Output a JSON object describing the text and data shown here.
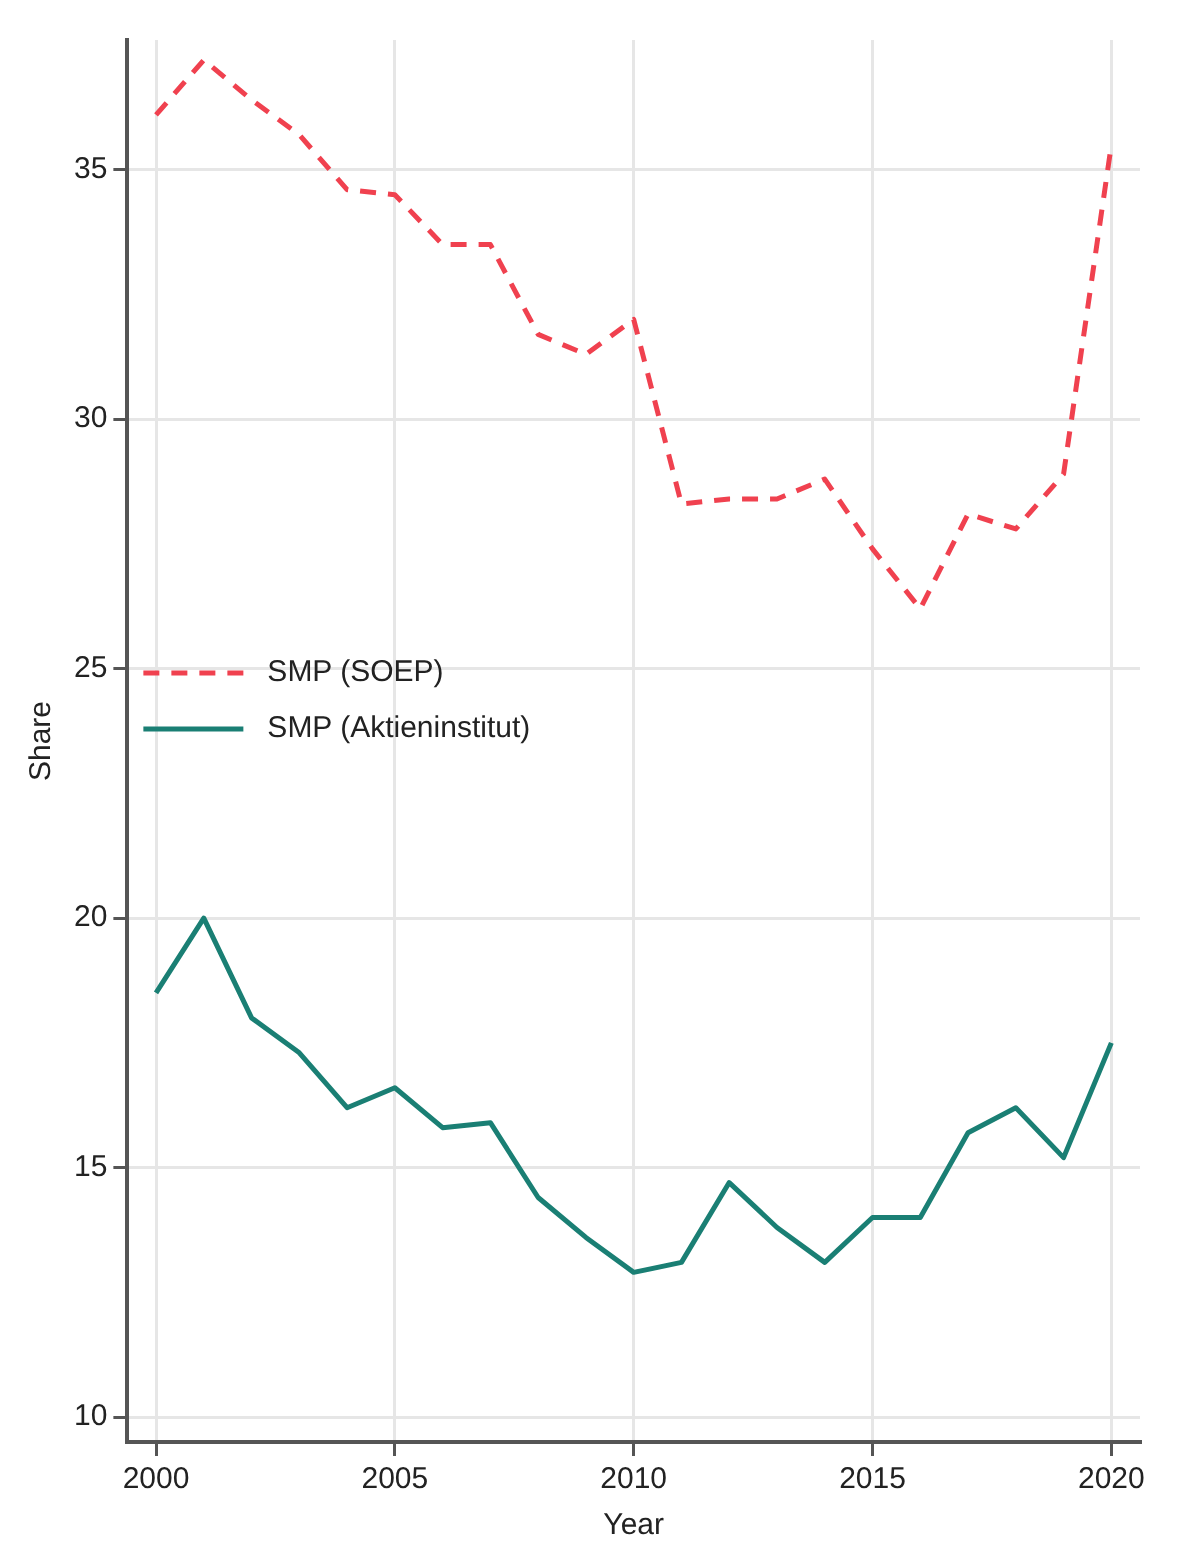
{
  "chart_data": {
    "type": "line",
    "xlabel": "Year",
    "ylabel": "Share",
    "x": [
      2000,
      2001,
      2002,
      2003,
      2004,
      2005,
      2006,
      2007,
      2008,
      2009,
      2010,
      2011,
      2012,
      2013,
      2014,
      2015,
      2016,
      2017,
      2018,
      2019,
      2020
    ],
    "xlim": [
      1999.4,
      2020.6
    ],
    "xticks": [
      2000,
      2005,
      2010,
      2015,
      2020
    ],
    "ylim": [
      9.5,
      37.6
    ],
    "yticks": [
      10,
      15,
      20,
      25,
      30,
      35
    ],
    "grid": true,
    "legend": "left",
    "marker": "none",
    "series": [
      {
        "name": "SMP (SOEP)",
        "color": "#f0414f",
        "line_style": "dashed",
        "values": [
          36.1,
          37.2,
          36.4,
          35.7,
          34.6,
          34.5,
          33.5,
          33.5,
          31.7,
          31.3,
          32.0,
          28.3,
          28.4,
          28.4,
          28.8,
          27.4,
          26.2,
          28.1,
          27.8,
          28.9,
          35.5
        ]
      },
      {
        "name": "SMP (Aktieninstitut)",
        "color": "#1a7f74",
        "line_style": "solid",
        "values": [
          18.5,
          20.0,
          18.0,
          17.3,
          16.2,
          16.6,
          15.8,
          15.9,
          14.4,
          13.6,
          12.9,
          13.1,
          14.7,
          13.8,
          13.1,
          14.0,
          14.0,
          15.7,
          16.2,
          15.2,
          17.5
        ]
      }
    ]
  }
}
